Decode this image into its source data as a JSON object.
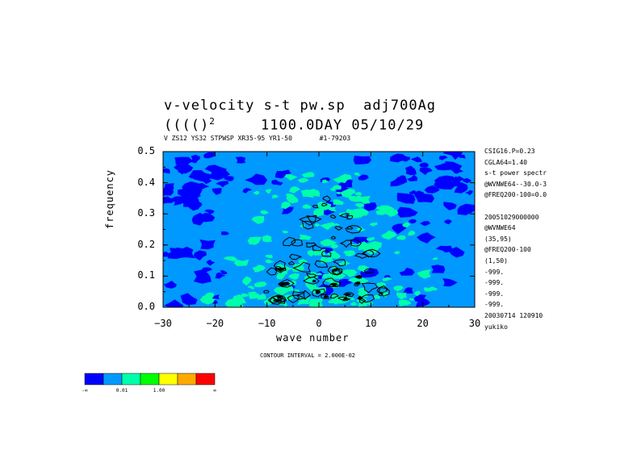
{
  "header": {
    "title_line1": "v-velocity s-t pw.sp  adj700Ag",
    "title_line2_prefix": "(((()",
    "title_line2_sup": "2",
    "title_line2_suffix": "     1100.0DAY 05/10/29",
    "subtitle": "V ZS12 YS32 STPWSP XR35-95 YR1-50       #1-79203"
  },
  "chart_data": {
    "type": "heatmap",
    "xlabel": "wave number",
    "ylabel": "frequency",
    "xlim": [
      -30,
      30
    ],
    "ylim": [
      0,
      0.5
    ],
    "x_ticks": [
      -30,
      -20,
      -10,
      0,
      10,
      20,
      30
    ],
    "x_tick_labels": [
      "−30",
      "−20",
      "−10",
      "0",
      "10",
      "20",
      "30"
    ],
    "y_ticks": [
      0.0,
      0.1,
      0.2,
      0.3,
      0.4,
      0.5
    ],
    "y_tick_labels": [
      "0.0",
      "0.1",
      "0.2",
      "0.3",
      "0.4",
      "0.5"
    ],
    "contour_interval_label": "CONTOUR INTERVAL = 2.000E-02",
    "colorbar": {
      "colors": [
        "#0000ff",
        "#0099ff",
        "#00ffaa",
        "#00ff00",
        "#ffff00",
        "#ffaa00",
        "#ff0000"
      ],
      "labels": [
        "-∞",
        "0.01",
        "1.00",
        "∞"
      ]
    },
    "colors": {
      "background_level": "#0099ff",
      "low_level": "#0000ff",
      "mid_level": "#00ffaa",
      "contour_line": "#000000"
    }
  },
  "info_panel": [
    "CSIG16.P=0.23",
    "CGLA64=1.40",
    "s-t power spectr",
    "@WVNWE64--30.0-3",
    "@FREQ200-100=0.0",
    "",
    "20051029000000",
    "@WVNWE64",
    "(35,95)",
    "@FREQ200-100",
    "(1,50)",
    "-999.",
    "-999.",
    "-999.",
    "-999.",
    "20030714 120910",
    "yukiko"
  ]
}
